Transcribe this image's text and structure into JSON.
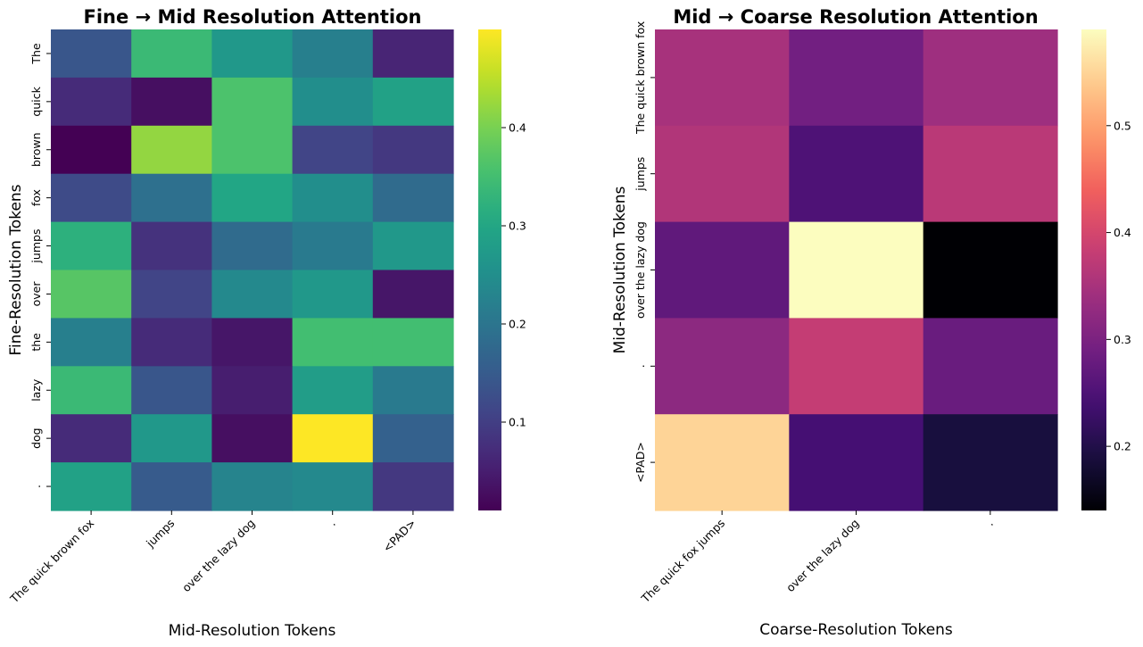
{
  "chart_data": [
    {
      "type": "heatmap",
      "title": "Fine → Mid Resolution Attention",
      "xlabel": "Mid-Resolution Tokens",
      "ylabel": "Fine-Resolution Tokens",
      "x_categories": [
        "The quick brown fox",
        "jumps",
        "over the lazy dog",
        ".",
        "<PAD>"
      ],
      "y_categories": [
        "The",
        "quick",
        "brown",
        "fox",
        "jumps",
        "over",
        "the",
        "lazy",
        "dog",
        "."
      ],
      "values": [
        [
          0.14,
          0.34,
          0.27,
          0.22,
          0.06
        ],
        [
          0.07,
          0.03,
          0.36,
          0.25,
          0.29
        ],
        [
          0.01,
          0.42,
          0.36,
          0.11,
          0.09
        ],
        [
          0.12,
          0.19,
          0.3,
          0.25,
          0.18
        ],
        [
          0.32,
          0.08,
          0.18,
          0.21,
          0.27
        ],
        [
          0.37,
          0.11,
          0.24,
          0.27,
          0.04
        ],
        [
          0.22,
          0.07,
          0.04,
          0.35,
          0.35
        ],
        [
          0.34,
          0.14,
          0.05,
          0.28,
          0.21
        ],
        [
          0.07,
          0.27,
          0.03,
          0.5,
          0.16
        ],
        [
          0.29,
          0.15,
          0.23,
          0.24,
          0.09
        ]
      ],
      "vmin": 0.01,
      "vmax": 0.5,
      "colormap": "viridis",
      "colorbar_ticks": [
        0.1,
        0.2,
        0.3,
        0.4
      ]
    },
    {
      "type": "heatmap",
      "title": "Mid → Coarse Resolution Attention",
      "xlabel": "Coarse-Resolution Tokens",
      "ylabel": "Mid-Resolution Tokens",
      "x_categories": [
        "The quick fox jumps",
        "over the lazy dog",
        "."
      ],
      "y_categories": [
        "The quick brown fox",
        "jumps",
        "over the lazy dog",
        ".",
        "<PAD>"
      ],
      "values": [
        [
          0.35,
          0.29,
          0.34
        ],
        [
          0.36,
          0.25,
          0.37
        ],
        [
          0.27,
          0.59,
          0.14
        ],
        [
          0.32,
          0.38,
          0.28
        ],
        [
          0.55,
          0.24,
          0.19
        ]
      ],
      "vmin": 0.14,
      "vmax": 0.59,
      "colormap": "magma",
      "colorbar_ticks": [
        0.2,
        0.3,
        0.4,
        0.5
      ]
    }
  ]
}
